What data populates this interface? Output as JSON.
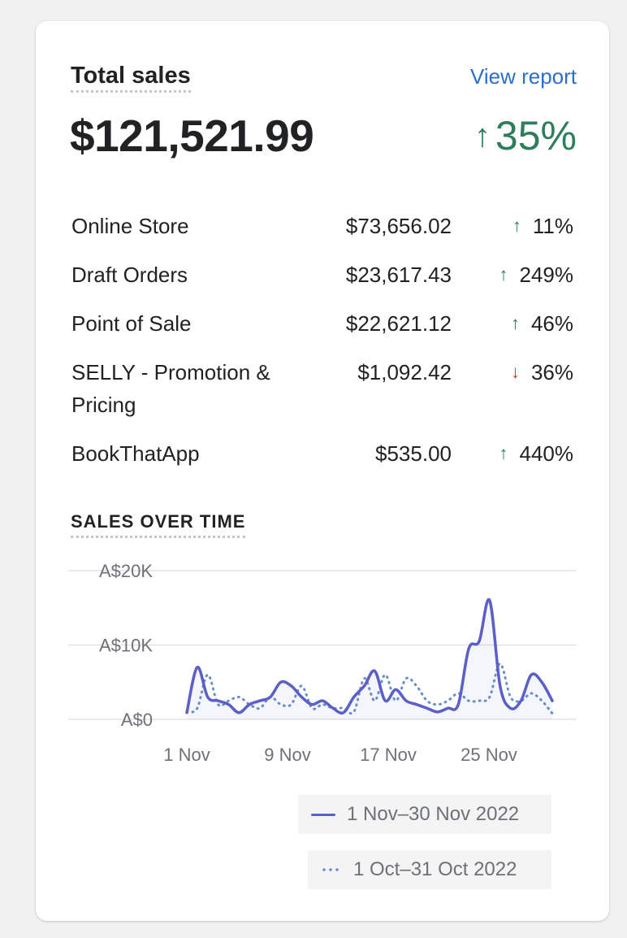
{
  "card": {
    "title": "Total sales",
    "view_report": "View report",
    "total_value": "$121,521.99",
    "total_change": "35%",
    "total_change_arrow": "up-arrow-icon"
  },
  "channels": [
    {
      "name": "Online Store",
      "amount": "$73,656.02",
      "change": "11%",
      "direction": "up"
    },
    {
      "name": "Draft Orders",
      "amount": "$23,617.43",
      "change": "249%",
      "direction": "up"
    },
    {
      "name": "Point of Sale",
      "amount": "$22,621.12",
      "change": "46%",
      "direction": "up"
    },
    {
      "name": "SELLY - Promotion & Pricing",
      "amount": "$1,092.42",
      "change": "36%",
      "direction": "down"
    },
    {
      "name": "BookThatApp",
      "amount": "$535.00",
      "change": "440%",
      "direction": "up"
    }
  ],
  "sales_over_time_label": "SALES OVER TIME",
  "colors": {
    "current_series": "#5b5fc7",
    "previous_series": "#6a8fc8",
    "up": "#2e7d5b",
    "down": "#c9362d",
    "link": "#2c6ecb"
  },
  "chart_data": {
    "type": "line",
    "x_ticks": [
      "1 Nov",
      "9 Nov",
      "17 Nov",
      "25 Nov"
    ],
    "y_ticks": [
      "A$20K",
      "A$10K",
      "A$0"
    ],
    "ylim": [
      0,
      20000
    ],
    "grid": true,
    "legend_placement": "bottom-right",
    "series": [
      {
        "name": "1 Nov–30 Nov 2022",
        "style": "solid",
        "values": [
          900,
          7000,
          3000,
          2500,
          2000,
          900,
          2000,
          2500,
          3000,
          5000,
          4500,
          3000,
          2000,
          2500,
          1500,
          900,
          3000,
          4500,
          6500,
          2500,
          4000,
          2500,
          2000,
          1500,
          1000,
          1500,
          2000,
          9500,
          10500,
          16000,
          4500,
          1500,
          2500,
          6000,
          5000,
          2500
        ]
      },
      {
        "name": "1 Oct–31 Oct 2022",
        "style": "dotted",
        "values": [
          1000,
          1500,
          6000,
          2000,
          2500,
          3000,
          2000,
          1500,
          3000,
          2000,
          2000,
          4500,
          1500,
          2000,
          1500,
          1500,
          1000,
          5500,
          2500,
          6000,
          2500,
          5500,
          4500,
          2500,
          2000,
          2500,
          3500,
          2500,
          2500,
          3000,
          7500,
          3000,
          2500,
          3500,
          2500,
          800
        ]
      }
    ]
  }
}
